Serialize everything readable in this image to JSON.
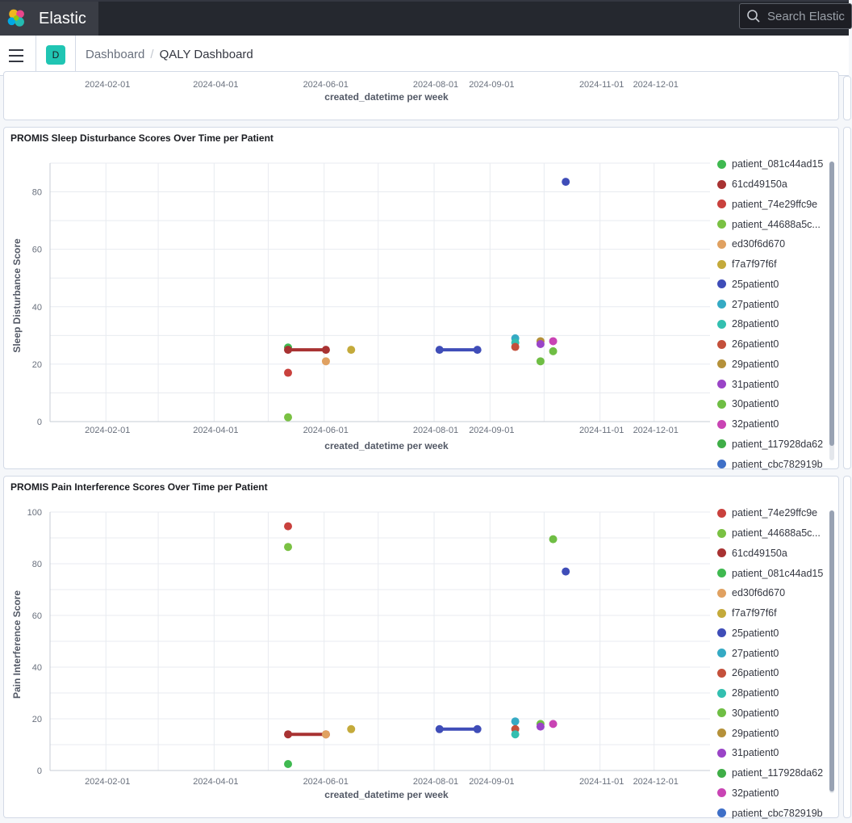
{
  "header": {
    "app_name": "Elastic",
    "logo_icon": "elastic-logo-icon",
    "search_placeholder": "Search Elastic"
  },
  "nav": {
    "menu_icon": "hamburger-menu-icon",
    "space_initial": "D",
    "breadcrumbs": [
      "Dashboard",
      "QALY Dashboard"
    ]
  },
  "top_panel": {
    "x_ticks": [
      "2024-02-01",
      "2024-04-01",
      "2024-06-01",
      "2024-08-01",
      "2024-09-01",
      "2024-11-01",
      "2024-12-01"
    ],
    "xlabel": "created_datetime per week"
  },
  "chart_data": [
    {
      "type": "scatter",
      "title": "PROMIS Sleep Disturbance Scores Over Time per Patient",
      "xlabel": "created_datetime per week",
      "ylabel": "Sleep Disturbance Score",
      "ylim": [
        0,
        90
      ],
      "y_ticks": [
        0,
        20,
        40,
        60,
        80
      ],
      "x_ticks": [
        "2024-02-01",
        "2024-04-01",
        "2024-06-01",
        "2024-08-01",
        "2024-09-01",
        "2024-11-01",
        "2024-12-01"
      ],
      "xlim": [
        "2024-01-01",
        "2025-01-01"
      ],
      "grid": true,
      "legend_position": "right",
      "series": [
        {
          "name": "patient_081c44ad15",
          "color": "#3fb950",
          "points": [
            [
              "2024-05-12",
              25.8
            ]
          ]
        },
        {
          "name": "61cd49150a",
          "color": "#a83232",
          "points": [
            [
              "2024-05-12",
              25
            ],
            [
              "2024-06-02",
              25
            ]
          ],
          "connected": true
        },
        {
          "name": "patient_74e29ffc9e",
          "color": "#c9413d",
          "points": [
            [
              "2024-05-12",
              17
            ]
          ]
        },
        {
          "name": "patient_44688a5c...",
          "color": "#7ac143",
          "points": [
            [
              "2024-05-12",
              1.5
            ]
          ]
        },
        {
          "name": "ed30f6d670",
          "color": "#e0a161",
          "points": [
            [
              "2024-06-02",
              21
            ]
          ]
        },
        {
          "name": "f7a7f97f6f",
          "color": "#c4aa3b",
          "points": [
            [
              "2024-06-16",
              25
            ]
          ]
        },
        {
          "name": "25patient0",
          "color": "#3f4db8",
          "points": [
            [
              "2024-08-04",
              25
            ],
            [
              "2024-08-25",
              25
            ],
            [
              "2024-10-13",
              83.5
            ]
          ],
          "connected_first": 2
        },
        {
          "name": "27patient0",
          "color": "#35aac4",
          "points": [
            [
              "2024-09-15",
              29
            ]
          ]
        },
        {
          "name": "28patient0",
          "color": "#33bfb0",
          "points": [
            [
              "2024-09-15",
              27.5
            ]
          ]
        },
        {
          "name": "26patient0",
          "color": "#c4503b",
          "points": [
            [
              "2024-09-15",
              26
            ]
          ]
        },
        {
          "name": "29patient0",
          "color": "#b5913a",
          "points": [
            [
              "2024-09-29",
              28
            ]
          ]
        },
        {
          "name": "31patient0",
          "color": "#9a44c7",
          "points": [
            [
              "2024-09-29",
              27
            ]
          ]
        },
        {
          "name": "30patient0",
          "color": "#6fbe44",
          "points": [
            [
              "2024-09-29",
              21
            ],
            [
              "2024-10-06",
              24.5
            ]
          ]
        },
        {
          "name": "32patient0",
          "color": "#c944b4",
          "points": [
            [
              "2024-10-06",
              28
            ]
          ]
        },
        {
          "name": "patient_117928da62",
          "color": "#3fae47",
          "points": []
        },
        {
          "name": "patient_cbc782919b",
          "color": "#3e6fc7",
          "points": []
        }
      ]
    },
    {
      "type": "scatter",
      "title": "PROMIS Pain Interference Scores Over Time per Patient",
      "xlabel": "created_datetime per week",
      "ylabel": "Pain Interference Score",
      "ylim": [
        0,
        100
      ],
      "y_ticks": [
        0,
        20,
        40,
        60,
        80,
        100
      ],
      "x_ticks": [
        "2024-02-01",
        "2024-04-01",
        "2024-06-01",
        "2024-08-01",
        "2024-09-01",
        "2024-11-01",
        "2024-12-01"
      ],
      "xlim": [
        "2024-01-01",
        "2025-01-01"
      ],
      "grid": true,
      "legend_position": "right",
      "series": [
        {
          "name": "patient_74e29ffc9e",
          "color": "#c9413d",
          "points": [
            [
              "2024-05-12",
              94.5
            ]
          ]
        },
        {
          "name": "patient_44688a5c...",
          "color": "#7ac143",
          "points": [
            [
              "2024-05-12",
              86.5
            ]
          ]
        },
        {
          "name": "61cd49150a",
          "color": "#a83232",
          "points": [
            [
              "2024-05-12",
              14
            ],
            [
              "2024-06-02",
              14
            ]
          ],
          "connected": true
        },
        {
          "name": "patient_081c44ad15",
          "color": "#3fb950",
          "points": [
            [
              "2024-05-12",
              2.5
            ]
          ]
        },
        {
          "name": "ed30f6d670",
          "color": "#e0a161",
          "points": [
            [
              "2024-06-02",
              14
            ]
          ]
        },
        {
          "name": "f7a7f97f6f",
          "color": "#c4aa3b",
          "points": [
            [
              "2024-06-16",
              16
            ]
          ]
        },
        {
          "name": "25patient0",
          "color": "#3f4db8",
          "points": [
            [
              "2024-08-04",
              16
            ],
            [
              "2024-08-25",
              16
            ],
            [
              "2024-10-13",
              77
            ]
          ],
          "connected_first": 2
        },
        {
          "name": "27patient0",
          "color": "#35aac4",
          "points": [
            [
              "2024-09-15",
              19
            ]
          ]
        },
        {
          "name": "26patient0",
          "color": "#c4503b",
          "points": [
            [
              "2024-09-15",
              16
            ]
          ]
        },
        {
          "name": "28patient0",
          "color": "#33bfb0",
          "points": [
            [
              "2024-09-15",
              14
            ]
          ]
        },
        {
          "name": "30patient0",
          "color": "#6fbe44",
          "points": [
            [
              "2024-09-29",
              18
            ],
            [
              "2024-10-06",
              89.5
            ]
          ]
        },
        {
          "name": "29patient0",
          "color": "#b5913a",
          "points": []
        },
        {
          "name": "31patient0",
          "color": "#9a44c7",
          "points": [
            [
              "2024-09-29",
              17
            ]
          ]
        },
        {
          "name": "patient_117928da62",
          "color": "#3fae47",
          "points": []
        },
        {
          "name": "32patient0",
          "color": "#c944b4",
          "points": [
            [
              "2024-10-06",
              18
            ]
          ]
        },
        {
          "name": "patient_cbc782919b",
          "color": "#3e6fc7",
          "points": []
        }
      ]
    }
  ]
}
